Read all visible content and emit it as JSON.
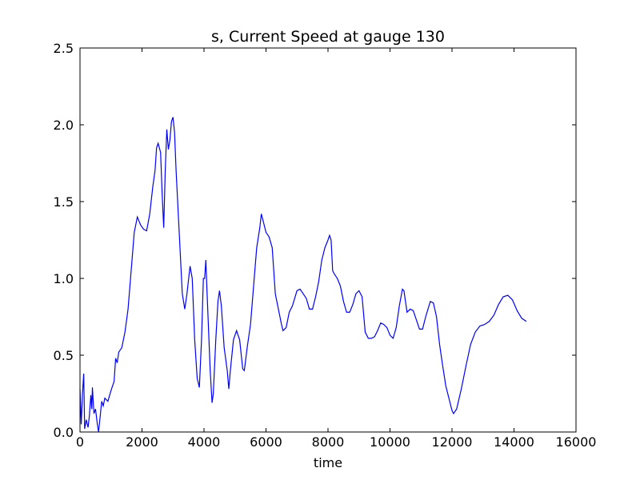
{
  "chart_data": {
    "type": "line",
    "title": "s, Current Speed at gauge 130",
    "xlabel": "time",
    "x": [
      0,
      40,
      80,
      120,
      150,
      200,
      260,
      300,
      350,
      380,
      400,
      450,
      500,
      560,
      600,
      650,
      700,
      750,
      800,
      900,
      1000,
      1100,
      1150,
      1200,
      1250,
      1350,
      1450,
      1550,
      1650,
      1750,
      1850,
      1950,
      2050,
      2150,
      2250,
      2350,
      2420,
      2470,
      2520,
      2600,
      2650,
      2700,
      2750,
      2800,
      2850,
      2900,
      2950,
      3000,
      3050,
      3100,
      3200,
      3300,
      3380,
      3450,
      3550,
      3620,
      3700,
      3780,
      3850,
      3920,
      3980,
      4020,
      4060,
      4100,
      4200,
      4260,
      4300,
      4380,
      4450,
      4500,
      4560,
      4650,
      4750,
      4800,
      4850,
      4950,
      5050,
      5150,
      5250,
      5300,
      5400,
      5500,
      5600,
      5700,
      5800,
      5850,
      5900,
      6000,
      6100,
      6200,
      6300,
      6400,
      6500,
      6550,
      6650,
      6750,
      6850,
      7000,
      7100,
      7200,
      7300,
      7400,
      7500,
      7600,
      7700,
      7800,
      7900,
      8000,
      8050,
      8100,
      8150,
      8200,
      8300,
      8400,
      8500,
      8600,
      8700,
      8800,
      8900,
      9000,
      9100,
      9200,
      9300,
      9400,
      9500,
      9600,
      9700,
      9800,
      9900,
      10000,
      10100,
      10200,
      10300,
      10400,
      10450,
      10550,
      10650,
      10750,
      10850,
      10950,
      11050,
      11150,
      11300,
      11400,
      11500,
      11600,
      11700,
      11800,
      11900,
      12000,
      12050,
      12150,
      12300,
      12450,
      12600,
      12750,
      12900,
      13050,
      13200,
      13350,
      13500,
      13650,
      13800,
      13950,
      14100,
      14250,
      14400
    ],
    "series": [
      {
        "color": "#0000ff",
        "values": [
          0.28,
          0.05,
          0.25,
          0.38,
          0.02,
          0.08,
          0.03,
          0.1,
          0.24,
          0.15,
          0.29,
          0.12,
          0.15,
          0.05,
          0.0,
          0.1,
          0.2,
          0.17,
          0.22,
          0.2,
          0.27,
          0.33,
          0.48,
          0.45,
          0.52,
          0.55,
          0.65,
          0.8,
          1.05,
          1.3,
          1.4,
          1.35,
          1.32,
          1.31,
          1.42,
          1.6,
          1.7,
          1.85,
          1.88,
          1.82,
          1.55,
          1.33,
          1.7,
          1.97,
          1.84,
          1.9,
          2.02,
          2.05,
          1.95,
          1.7,
          1.3,
          0.9,
          0.8,
          0.9,
          1.08,
          1.0,
          0.6,
          0.35,
          0.29,
          0.6,
          1.0,
          1.0,
          1.12,
          0.9,
          0.4,
          0.19,
          0.25,
          0.6,
          0.85,
          0.92,
          0.82,
          0.55,
          0.4,
          0.28,
          0.4,
          0.6,
          0.66,
          0.6,
          0.41,
          0.4,
          0.56,
          0.7,
          0.95,
          1.2,
          1.33,
          1.42,
          1.38,
          1.3,
          1.27,
          1.2,
          0.9,
          0.8,
          0.7,
          0.66,
          0.68,
          0.78,
          0.82,
          0.92,
          0.93,
          0.9,
          0.87,
          0.8,
          0.8,
          0.88,
          0.98,
          1.12,
          1.2,
          1.25,
          1.28,
          1.25,
          1.05,
          1.03,
          1.0,
          0.95,
          0.85,
          0.78,
          0.78,
          0.83,
          0.9,
          0.92,
          0.88,
          0.65,
          0.61,
          0.61,
          0.62,
          0.66,
          0.71,
          0.7,
          0.68,
          0.63,
          0.61,
          0.68,
          0.82,
          0.93,
          0.92,
          0.78,
          0.8,
          0.79,
          0.73,
          0.67,
          0.67,
          0.75,
          0.85,
          0.84,
          0.75,
          0.57,
          0.43,
          0.3,
          0.22,
          0.14,
          0.12,
          0.15,
          0.28,
          0.43,
          0.57,
          0.65,
          0.69,
          0.7,
          0.72,
          0.76,
          0.83,
          0.88,
          0.89,
          0.86,
          0.79,
          0.74,
          0.72
        ]
      }
    ],
    "xlim": [
      0,
      16000
    ],
    "xticks": [
      0,
      2000,
      4000,
      6000,
      8000,
      10000,
      12000,
      14000,
      16000
    ],
    "ylim": [
      0,
      2.5
    ],
    "yticks": [
      {
        "value": 0,
        "label": "0.0"
      },
      0.5,
      {
        "value": 1,
        "label": "1.0"
      },
      1.5,
      {
        "value": 2,
        "label": "2.0"
      },
      2.5
    ]
  }
}
